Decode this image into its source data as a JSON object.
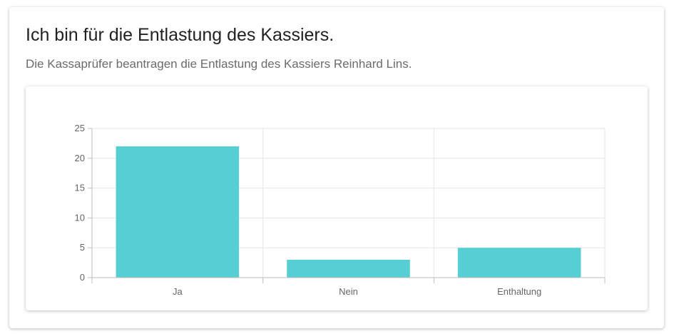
{
  "page": {
    "title": "Ich bin für die Entlastung des Kassiers.",
    "subtitle": "Die Kassaprüfer beantragen die Entlastung des Kassiers Reinhard Lins."
  },
  "chart_data": {
    "type": "bar",
    "categories": [
      "Ja",
      "Nein",
      "Enthaltung"
    ],
    "values": [
      22,
      3,
      5
    ],
    "ylim": [
      0,
      25
    ],
    "yticks": [
      0,
      5,
      10,
      15,
      20,
      25
    ],
    "grid": true,
    "legend": "none",
    "bar_color": "#56cfd4",
    "grid_color": "#e6e6e6",
    "axis_color": "#bdbdbd"
  }
}
